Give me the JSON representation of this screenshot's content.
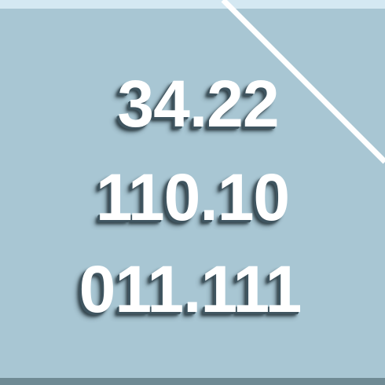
{
  "numbers": {
    "line1": "34.22",
    "line2": "110.10",
    "line3": "011.111"
  },
  "colors": {
    "background": "#a8c6d3",
    "top_band": "#d4e8f2",
    "bottom_band": "#6f8a94",
    "text": "#ffffff",
    "text_shadow": "#3f5560",
    "diagonal_line": "#ffffff"
  }
}
